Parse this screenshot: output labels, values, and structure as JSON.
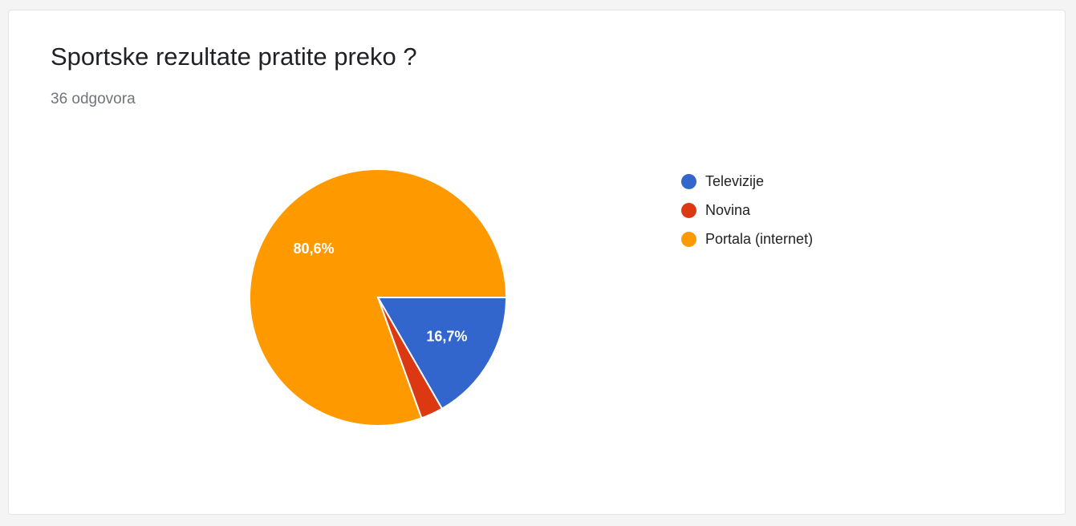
{
  "card": {
    "title": "Sportske rezultate pratite preko ?",
    "response_count": "36 odgovora"
  },
  "chart_data": {
    "type": "pie",
    "categories": [
      "Televizije",
      "Novina",
      "Portala (internet)"
    ],
    "values": [
      16.7,
      2.8,
      80.6
    ],
    "slice_labels": [
      "16,7%",
      "",
      "80,6%"
    ],
    "colors": [
      "#3366cc",
      "#dc3912",
      "#ff9900"
    ],
    "legend_position": "right",
    "start_angle": "3 o'clock",
    "direction": "clockwise"
  }
}
